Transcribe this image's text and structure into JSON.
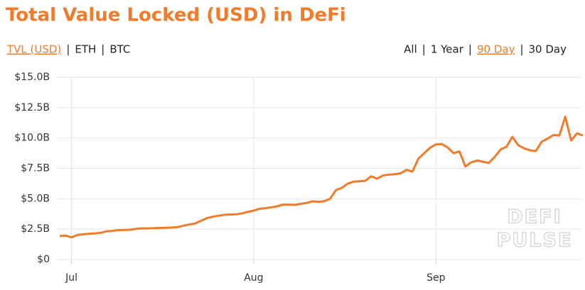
{
  "header": {
    "title": "Total Value Locked (USD) in DeFi"
  },
  "nav": {
    "separator": "|",
    "left": [
      "TVL (USD)",
      "ETH",
      "BTC"
    ],
    "left_active": 0,
    "right": [
      "All",
      "1 Year",
      "90 Day",
      "30 Day"
    ],
    "right_active": 2
  },
  "watermark": [
    "DEFI",
    "PULSE"
  ],
  "chart_data": {
    "type": "line",
    "color": "#f07b2b",
    "grid": true,
    "categories": [
      null,
      null,
      "Jul",
      null,
      null,
      null,
      null,
      null,
      null,
      null,
      null,
      null,
      null,
      null,
      null,
      null,
      null,
      null,
      null,
      null,
      null,
      null,
      null,
      null,
      null,
      null,
      null,
      null,
      null,
      null,
      null,
      null,
      null,
      "Aug",
      null,
      null,
      null,
      null,
      null,
      null,
      null,
      null,
      null,
      null,
      null,
      null,
      null,
      null,
      null,
      null,
      null,
      null,
      null,
      null,
      null,
      null,
      null,
      null,
      null,
      null,
      null,
      null,
      null,
      null,
      "Sep",
      null,
      null,
      null,
      null,
      null,
      null,
      null,
      null,
      null,
      null,
      null,
      null,
      null,
      null,
      null,
      null,
      null,
      null,
      null,
      null,
      null,
      null,
      null,
      null,
      null
    ],
    "values": [
      1.93,
      1.97,
      1.82,
      2.02,
      2.08,
      2.12,
      2.15,
      2.2,
      2.33,
      2.35,
      2.42,
      2.44,
      2.45,
      2.52,
      2.57,
      2.56,
      2.58,
      2.6,
      2.61,
      2.63,
      2.66,
      2.78,
      2.88,
      2.96,
      3.18,
      3.4,
      3.52,
      3.6,
      3.68,
      3.7,
      3.72,
      3.8,
      3.92,
      4.03,
      4.18,
      4.22,
      4.3,
      4.38,
      4.52,
      4.52,
      4.5,
      4.58,
      4.66,
      4.79,
      4.74,
      4.8,
      5.0,
      5.72,
      5.9,
      6.25,
      6.4,
      6.45,
      6.48,
      6.85,
      6.65,
      6.92,
      6.98,
      7.03,
      7.1,
      7.38,
      7.24,
      8.3,
      8.75,
      9.2,
      9.48,
      9.5,
      9.22,
      8.75,
      8.9,
      7.65,
      8.0,
      8.15,
      8.05,
      7.95,
      8.45,
      9.05,
      9.28,
      10.1,
      9.4,
      9.15,
      8.98,
      8.93,
      9.7,
      9.95,
      10.25,
      10.2,
      11.75,
      9.8,
      10.39,
      10.21
    ],
    "ylim": [
      0,
      15
    ],
    "yticks": [
      {
        "value": 0,
        "label": "$0"
      },
      {
        "value": 2.5,
        "label": "$2.5B"
      },
      {
        "value": 5,
        "label": "$5.0B"
      },
      {
        "value": 7.5,
        "label": "$7.5B"
      },
      {
        "value": 10,
        "label": "$10.0B"
      },
      {
        "value": 12.5,
        "label": "$12.5B"
      },
      {
        "value": 15,
        "label": "$15.0B"
      }
    ]
  }
}
